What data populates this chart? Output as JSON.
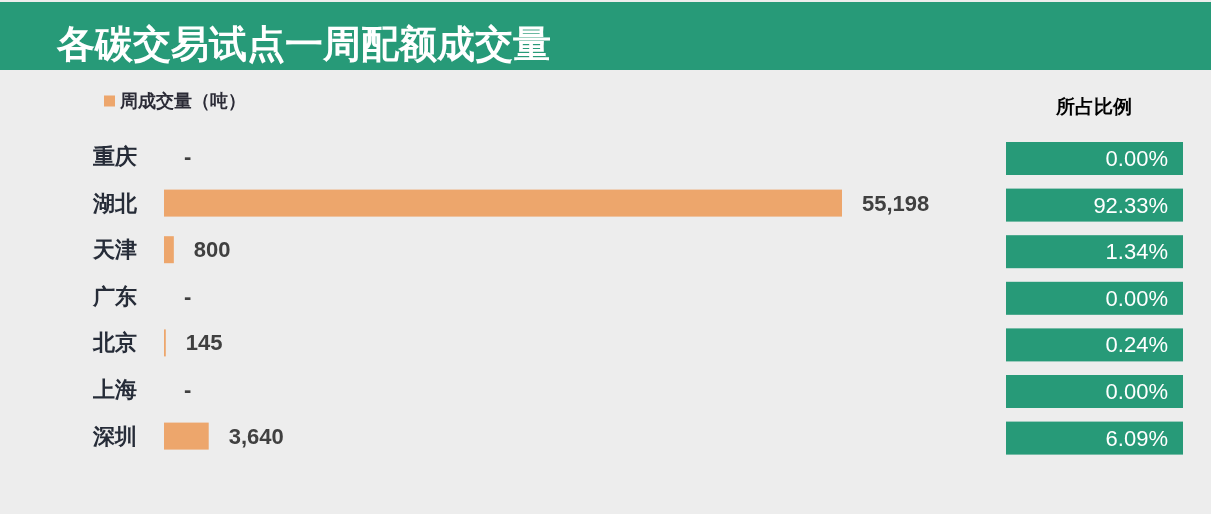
{
  "chart_data": [
    {
      "type": "bar",
      "orientation": "horizontal",
      "title": "各碳交易试点一周配额成交量",
      "categories": [
        "重庆",
        "湖北",
        "天津",
        "广东",
        "北京",
        "上海",
        "深圳"
      ],
      "series": [
        {
          "name": "周成交量（吨）",
          "color": "#eda66c",
          "values": [
            0,
            55198,
            800,
            0,
            145,
            0,
            3640
          ],
          "value_labels": [
            "-",
            "55,198",
            "800",
            "-",
            "145",
            "-",
            "3,640"
          ]
        }
      ],
      "legend": "top left"
    },
    {
      "type": "other",
      "title": "所占比例",
      "color": "#279a78",
      "value_labels": [
        "0.00%",
        "92.33%",
        "1.34%",
        "0.00%",
        "0.24%",
        "0.00%",
        "6.09%"
      ]
    }
  ]
}
